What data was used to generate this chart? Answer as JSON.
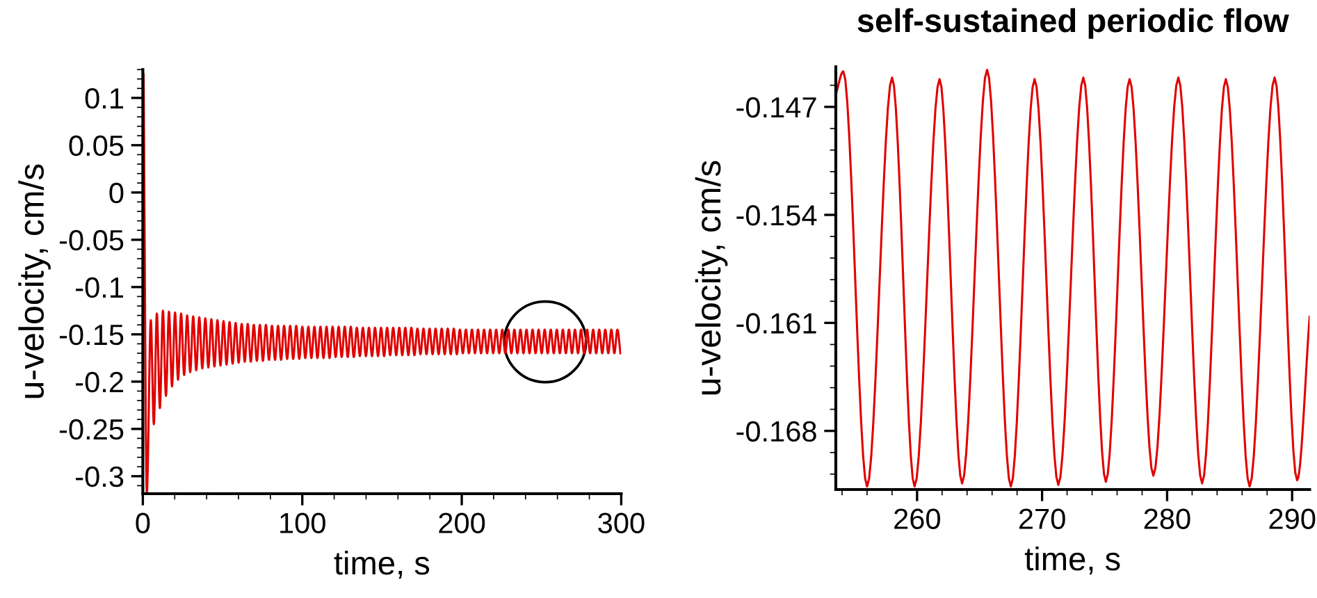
{
  "chart_data": [
    {
      "type": "line",
      "xlabel": "time, s",
      "ylabel": "u-velocity, cm/s",
      "xlim": [
        0,
        300
      ],
      "ylim": [
        -0.3185,
        0.13
      ],
      "xticks": [
        0,
        100,
        200,
        300
      ],
      "yticks": [
        0.1,
        0.05,
        0,
        -0.05,
        -0.1,
        -0.15,
        -0.2,
        -0.25,
        -0.3
      ],
      "x": [
        0.5,
        2.5,
        5.0,
        6.9,
        8.8,
        10.7,
        12.6,
        14.5,
        16.4,
        18.3,
        20.2,
        22.1,
        24.0,
        25.9,
        27.8,
        29.7,
        31.6,
        33.5,
        35.4,
        37.3,
        39.2,
        41.1,
        43.0,
        44.9,
        46.8,
        48.7,
        50.6,
        52.5,
        54.4,
        56.3,
        58.2,
        60.1,
        62.0,
        63.9,
        65.8,
        67.7,
        69.6,
        71.5,
        73.4,
        75.3,
        77.2,
        79.1,
        81.0,
        82.9,
        84.8,
        86.7,
        88.6,
        90.5,
        92.4,
        94.3,
        96.2,
        98.1,
        100.0,
        101.9,
        103.8,
        105.7,
        107.6,
        109.5,
        111.4,
        113.3,
        115.2,
        117.1,
        119.0,
        120.9,
        122.8,
        124.7,
        126.6,
        128.5,
        130.4,
        132.3,
        134.2,
        136.1,
        138.0,
        139.9,
        141.8,
        143.7,
        145.6,
        147.5,
        149.4,
        151.3,
        153.2,
        155.1,
        157.0,
        158.9,
        160.8,
        162.7,
        164.6,
        166.5,
        168.4,
        170.3,
        172.2,
        174.1,
        176.0,
        177.9,
        179.8,
        181.7,
        183.6,
        185.5,
        187.4,
        189.3,
        191.2,
        193.1,
        195.0,
        196.9,
        198.8,
        200.7,
        202.6,
        204.5,
        206.4,
        208.3,
        210.2,
        212.1,
        214.0,
        215.9,
        217.8,
        219.7,
        221.6,
        223.5,
        225.4,
        227.3,
        229.2,
        231.1,
        233.0,
        234.9,
        236.8,
        238.7,
        240.6,
        242.5,
        244.4,
        246.3,
        248.2,
        250.1,
        252.0,
        253.9,
        255.8,
        257.7,
        259.6,
        261.5,
        263.4,
        265.3,
        267.2,
        269.1,
        271.0,
        272.9,
        274.8,
        276.7,
        278.6,
        280.5,
        282.4,
        284.3,
        286.2,
        288.1,
        290.0,
        291.9,
        293.8,
        295.7,
        297.6,
        299.5
      ],
      "series": [
        {
          "color": "#e00000",
          "values": [
            0.125,
            -0.318,
            -0.135,
            -0.245,
            -0.128,
            -0.228,
            -0.125,
            -0.215,
            -0.126,
            -0.205,
            -0.127,
            -0.198,
            -0.128,
            -0.193,
            -0.13,
            -0.19,
            -0.131,
            -0.188,
            -0.132,
            -0.186,
            -0.133,
            -0.185,
            -0.134,
            -0.184,
            -0.135,
            -0.183,
            -0.136,
            -0.182,
            -0.137,
            -0.181,
            -0.138,
            -0.18,
            -0.139,
            -0.179,
            -0.139,
            -0.179,
            -0.14,
            -0.178,
            -0.14,
            -0.178,
            -0.14,
            -0.177,
            -0.141,
            -0.177,
            -0.141,
            -0.177,
            -0.141,
            -0.176,
            -0.141,
            -0.176,
            -0.141,
            -0.176,
            -0.142,
            -0.175,
            -0.142,
            -0.175,
            -0.142,
            -0.175,
            -0.142,
            -0.175,
            -0.142,
            -0.175,
            -0.142,
            -0.174,
            -0.142,
            -0.174,
            -0.142,
            -0.174,
            -0.142,
            -0.174,
            -0.143,
            -0.173,
            -0.143,
            -0.173,
            -0.143,
            -0.173,
            -0.143,
            -0.173,
            -0.143,
            -0.173,
            -0.143,
            -0.172,
            -0.143,
            -0.172,
            -0.143,
            -0.172,
            -0.143,
            -0.172,
            -0.143,
            -0.172,
            -0.144,
            -0.171,
            -0.144,
            -0.171,
            -0.144,
            -0.171,
            -0.144,
            -0.171,
            -0.144,
            -0.171,
            -0.144,
            -0.171,
            -0.144,
            -0.171,
            -0.145,
            -0.17,
            -0.145,
            -0.17,
            -0.145,
            -0.17,
            -0.145,
            -0.17,
            -0.145,
            -0.17,
            -0.145,
            -0.17,
            -0.145,
            -0.17,
            -0.145,
            -0.17,
            -0.145,
            -0.17,
            -0.145,
            -0.17,
            -0.145,
            -0.17,
            -0.145,
            -0.17,
            -0.145,
            -0.17,
            -0.145,
            -0.17,
            -0.145,
            -0.17,
            -0.145,
            -0.17,
            -0.145,
            -0.17,
            -0.145,
            -0.17,
            -0.145,
            -0.17,
            -0.145,
            -0.17,
            -0.145,
            -0.17,
            -0.145,
            -0.17,
            -0.145,
            -0.17,
            -0.145,
            -0.17,
            -0.145,
            -0.17,
            -0.145,
            -0.17,
            -0.145,
            -0.17
          ]
        }
      ]
    },
    {
      "type": "line",
      "title": "self-sustained periodic flow",
      "xlabel": "time, s",
      "ylabel": "u-velocity, cm/s",
      "xlim": [
        253.5,
        291.4
      ],
      "ylim": [
        -0.1718,
        -0.1444
      ],
      "xticks": [
        260,
        270,
        280,
        290
      ],
      "yticks": [
        -0.147,
        -0.154,
        -0.161,
        -0.168
      ],
      "x": [
        253.5,
        254.1,
        256.0,
        258.0,
        259.8,
        261.8,
        263.6,
        265.6,
        267.5,
        269.4,
        271.3,
        273.3,
        275.1,
        277.0,
        278.9,
        280.9,
        282.8,
        284.7,
        286.6,
        288.6,
        290.4,
        291.4
      ],
      "series": [
        {
          "color": "#e00000",
          "values": [
            -0.1462,
            -0.1447,
            -0.1716,
            -0.1451,
            -0.1716,
            -0.1452,
            -0.1714,
            -0.1446,
            -0.1716,
            -0.1452,
            -0.1715,
            -0.1451,
            -0.1713,
            -0.1452,
            -0.1709,
            -0.1451,
            -0.1714,
            -0.1452,
            -0.1716,
            -0.1451,
            -0.1712,
            -0.1606
          ]
        }
      ]
    }
  ]
}
